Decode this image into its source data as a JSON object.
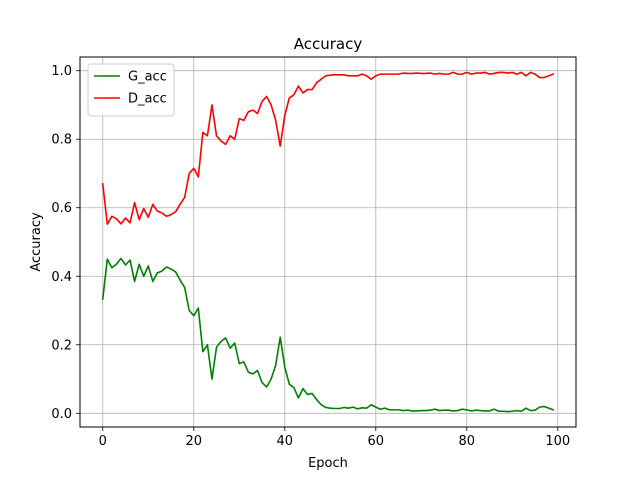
{
  "chart_data": {
    "type": "line",
    "title": "Accuracy",
    "xlabel": "Epoch",
    "ylabel": "Accuracy",
    "xlim": [
      -5,
      104
    ],
    "ylim": [
      -0.04,
      1.04
    ],
    "xticks": [
      0,
      20,
      40,
      60,
      80,
      100
    ],
    "yticks": [
      0.0,
      0.2,
      0.4,
      0.6,
      0.8,
      1.0
    ],
    "xtick_labels": [
      "0",
      "20",
      "40",
      "60",
      "80",
      "100"
    ],
    "ytick_labels": [
      "0.0",
      "0.2",
      "0.4",
      "0.6",
      "0.8",
      "1.0"
    ],
    "grid": true,
    "legend_position": "top-left",
    "series": [
      {
        "name": "G_acc",
        "color": "#008000",
        "values": [
          0.333,
          0.45,
          0.425,
          0.435,
          0.452,
          0.433,
          0.447,
          0.385,
          0.435,
          0.4,
          0.43,
          0.385,
          0.41,
          0.415,
          0.427,
          0.421,
          0.413,
          0.389,
          0.367,
          0.3,
          0.285,
          0.307,
          0.18,
          0.2,
          0.1,
          0.193,
          0.21,
          0.22,
          0.19,
          0.205,
          0.145,
          0.15,
          0.12,
          0.115,
          0.125,
          0.09,
          0.077,
          0.1,
          0.14,
          0.222,
          0.135,
          0.085,
          0.075,
          0.045,
          0.072,
          0.055,
          0.058,
          0.04,
          0.025,
          0.017,
          0.015,
          0.014,
          0.014,
          0.017,
          0.015,
          0.018,
          0.013,
          0.016,
          0.015,
          0.025,
          0.018,
          0.012,
          0.015,
          0.01,
          0.01,
          0.01,
          0.008,
          0.009,
          0.007,
          0.007,
          0.008,
          0.008,
          0.009,
          0.012,
          0.008,
          0.009,
          0.009,
          0.007,
          0.008,
          0.012,
          0.01,
          0.007,
          0.009,
          0.008,
          0.007,
          0.007,
          0.012,
          0.006,
          0.006,
          0.005,
          0.006,
          0.008,
          0.006,
          0.015,
          0.008,
          0.009,
          0.018,
          0.02,
          0.015,
          0.01
        ]
      },
      {
        "name": "D_acc",
        "color": "#ff0000",
        "values": [
          0.67,
          0.552,
          0.575,
          0.568,
          0.553,
          0.57,
          0.556,
          0.615,
          0.565,
          0.598,
          0.572,
          0.61,
          0.59,
          0.585,
          0.575,
          0.58,
          0.588,
          0.61,
          0.63,
          0.7,
          0.715,
          0.69,
          0.82,
          0.81,
          0.9,
          0.81,
          0.795,
          0.785,
          0.81,
          0.8,
          0.86,
          0.855,
          0.88,
          0.885,
          0.875,
          0.91,
          0.925,
          0.9,
          0.855,
          0.78,
          0.87,
          0.92,
          0.93,
          0.955,
          0.935,
          0.945,
          0.945,
          0.965,
          0.975,
          0.985,
          0.987,
          0.988,
          0.988,
          0.988,
          0.985,
          0.985,
          0.985,
          0.99,
          0.985,
          0.975,
          0.985,
          0.99,
          0.99,
          0.99,
          0.99,
          0.99,
          0.993,
          0.992,
          0.992,
          0.993,
          0.992,
          0.992,
          0.993,
          0.99,
          0.992,
          0.99,
          0.99,
          0.995,
          0.99,
          0.99,
          0.995,
          0.99,
          0.993,
          0.993,
          0.995,
          0.99,
          0.992,
          0.995,
          0.995,
          0.993,
          0.995,
          0.99,
          0.995,
          0.985,
          0.995,
          0.99,
          0.98,
          0.98,
          0.985,
          0.99
        ]
      }
    ]
  }
}
